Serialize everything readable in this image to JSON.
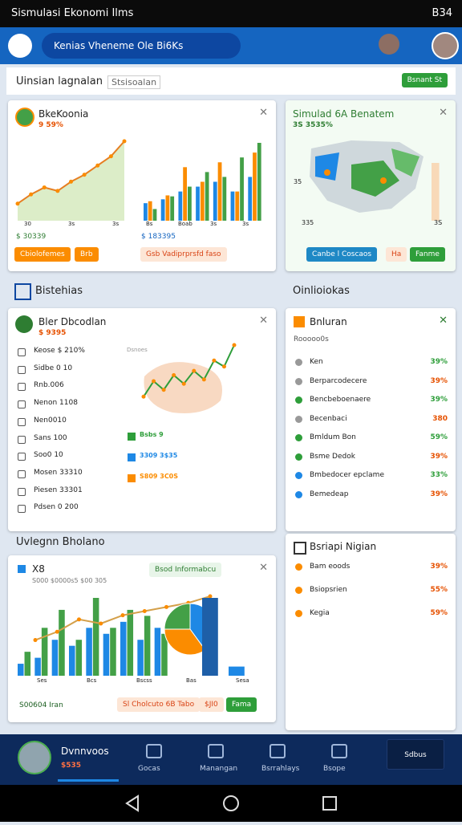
{
  "status_bar": {
    "title": "Sismulasi Ekonomi Ilms",
    "time": "B34"
  },
  "header": {
    "search": "Kenias Vheneme Ole Bi6Ks"
  },
  "toolbar": {
    "title": "Uinsian lagnalan",
    "tab": "Stsisoalan",
    "button": "Bsnant St"
  },
  "economy_card": {
    "title": "BkeKoonia",
    "subtitle": "9 59%",
    "line_values": [
      12,
      20,
      26,
      23,
      31,
      37,
      45,
      53,
      66
    ],
    "line_labels": [
      "30",
      "3s",
      "3s"
    ],
    "bars": [
      {
        "color": "#1e88e5",
        "values": [
          18,
          22,
          30,
          35,
          40,
          30,
          45
        ]
      },
      {
        "color": "#fb8c00",
        "values": [
          20,
          26,
          55,
          40,
          60,
          30,
          70
        ]
      },
      {
        "color": "#43a047",
        "values": [
          12,
          25,
          35,
          50,
          45,
          65,
          80
        ]
      }
    ],
    "bar_labels": [
      "Bs",
      "Boab",
      "3s",
      "3s"
    ],
    "stats": [
      "$ 30339",
      "$ 183395"
    ],
    "buttons": [
      "Cbiolofemes",
      "Brb",
      "Gsb Vadiprprsfd faso"
    ]
  },
  "map_card": {
    "title": "Simulad 6A Benatem",
    "subtitle": "3S 3535%",
    "labels": [
      "35",
      "335",
      "3S"
    ],
    "side_bar": [
      70
    ],
    "buttons": [
      "Canbe l Coscaos",
      "Ha",
      "Fanme"
    ]
  },
  "sections": {
    "left": "Bistehias",
    "right": "Oinlioiokas",
    "bottom": "Uvlegnn Bholano"
  },
  "detail_card": {
    "title": "Bler Dbcodlan",
    "subtitle": "$ 9395",
    "chart_label": "Dsnoes",
    "rows": [
      "Keose $ 210%",
      "Sidbe 0 10",
      "Rnb.006",
      "Nenon 1108",
      "Nen0010",
      "Sans 100",
      "Soo0 10",
      "Mosen 33310",
      "Piesen 33301",
      "Pdsen 0 200"
    ],
    "line_values": [
      10,
      28,
      18,
      35,
      25,
      40,
      30,
      52,
      45,
      70
    ],
    "legend": [
      "Bsbs 9",
      "3309 3$35",
      "S809 3C0S"
    ]
  },
  "share_card": {
    "title": "Bnluran",
    "subtitle": "Rooooo0s",
    "rows": [
      [
        "Ken",
        "39%"
      ],
      [
        "Berparcodecere",
        "39%"
      ],
      [
        "Bencbeboenaere",
        "39%"
      ],
      [
        "Becenbaci",
        "380"
      ],
      [
        "Bmldum Bon",
        "59%"
      ],
      [
        "Bsme Dedok",
        "39%"
      ],
      [
        "Bmbedocer epclame",
        "33%"
      ],
      [
        "Bemedeap",
        "39%"
      ]
    ]
  },
  "trend_card": {
    "title": "X8",
    "subtitle": "S000 $0000s5 $00 305",
    "tag": "Bsod Informabcu",
    "bars": [
      {
        "color": "#1e88e5",
        "values": [
          10,
          15,
          30,
          25,
          40,
          35,
          45,
          30,
          40
        ]
      },
      {
        "color": "#43a047",
        "values": [
          20,
          40,
          55,
          30,
          65,
          40,
          55,
          50,
          35
        ]
      }
    ],
    "line_values": [
      15,
      25,
      40,
      35,
      45,
      50,
      55,
      60,
      68
    ],
    "pie": [
      {
        "color": "#1e88e5",
        "value": 40
      },
      {
        "color": "#fb8c00",
        "value": 35
      },
      {
        "color": "#43a047",
        "value": 25
      }
    ],
    "side_bars": [
      85,
      10
    ],
    "axis_labels": [
      "Ses",
      "Bcs",
      "Bscss",
      "Bas",
      "Sesa"
    ],
    "footer": [
      "S00604 Iran",
      "Sl Cholcuto 6B Tabo",
      "$JI0",
      "Fama"
    ]
  },
  "region_card": {
    "title": "Bsriapi Nigian",
    "rows": [
      [
        "Bam eoods",
        "39%"
      ],
      [
        "Bsiopsrien",
        "55%"
      ],
      [
        "Kegia",
        "59%"
      ]
    ]
  },
  "bottom_nav": {
    "name": "Dvnnvoos",
    "value": "$535",
    "items": [
      "Gocas",
      "Manangan",
      "Bsrrahlays",
      "Bsope"
    ],
    "button": "Sdbus"
  }
}
